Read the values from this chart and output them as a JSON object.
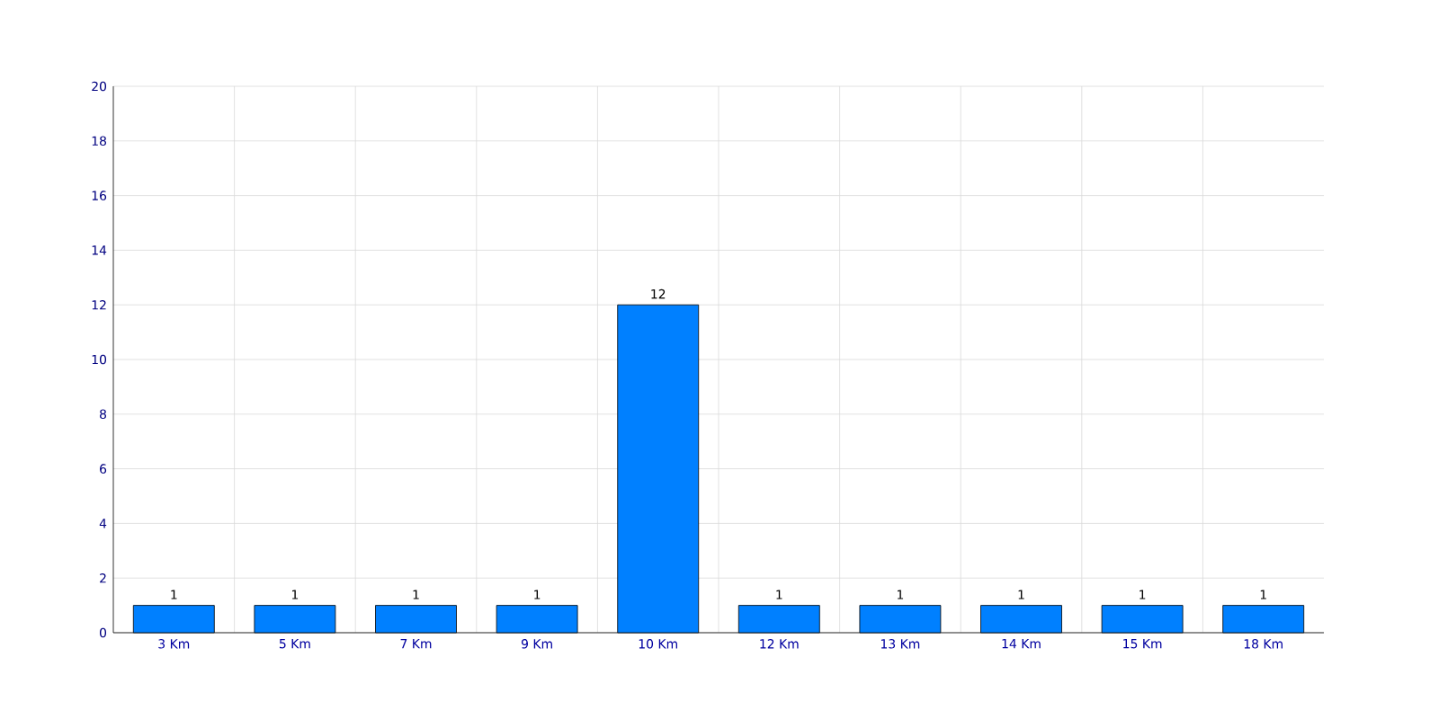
{
  "chart_data": {
    "type": "bar",
    "categories": [
      "3 Km",
      "5 Km",
      "7 Km",
      "9 Km",
      "10 Km",
      "12 Km",
      "13 Km",
      "14 Km",
      "15 Km",
      "18 Km"
    ],
    "values": [
      1,
      1,
      1,
      1,
      12,
      1,
      1,
      1,
      1,
      1
    ],
    "color": "#0080ff",
    "ylim": [
      0,
      20
    ],
    "yticks": [
      0,
      2,
      4,
      6,
      8,
      10,
      12,
      14,
      16,
      18,
      20
    ],
    "grid": true,
    "data_labels": true
  }
}
